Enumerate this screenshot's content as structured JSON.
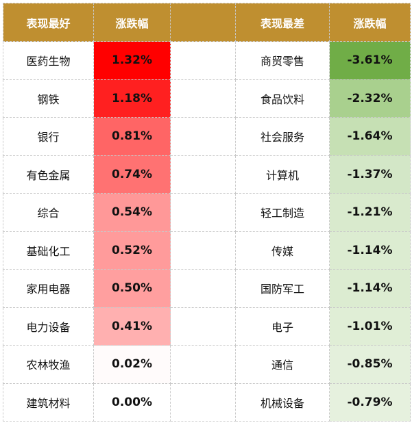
{
  "headers": {
    "best": "表现最好",
    "change1": "涨跌幅",
    "worst": "表现最差",
    "change2": "涨跌幅"
  },
  "rows": [
    {
      "best": "医药生物",
      "best_val": "1.32%",
      "best_color": "#ff0000",
      "worst": "商贸零售",
      "worst_val": "-3.61%",
      "worst_color": "#70ad47"
    },
    {
      "best": "钢铁",
      "best_val": "1.18%",
      "best_color": "#ff2020",
      "worst": "食品饮料",
      "worst_val": "-2.32%",
      "worst_color": "#a9d08e"
    },
    {
      "best": "银行",
      "best_val": "0.81%",
      "best_color": "#ff6565",
      "worst": "社会服务",
      "worst_val": "-1.64%",
      "worst_color": "#c6e0b4"
    },
    {
      "best": "有色金属",
      "best_val": "0.74%",
      "best_color": "#ff7272",
      "worst": "计算机",
      "worst_val": "-1.37%",
      "worst_color": "#d3e7c7"
    },
    {
      "best": "综合",
      "best_val": "0.54%",
      "best_color": "#ff9898",
      "worst": "轻工制造",
      "worst_val": "-1.21%",
      "worst_color": "#d9eacd"
    },
    {
      "best": "基础化工",
      "best_val": "0.52%",
      "best_color": "#ff9b9b",
      "worst": "传媒",
      "worst_val": "-1.14%",
      "worst_color": "#dcecd1"
    },
    {
      "best": "家用电器",
      "best_val": "0.50%",
      "best_color": "#ff9f9f",
      "worst": "国防军工",
      "worst_val": "-1.14%",
      "worst_color": "#dcecd1"
    },
    {
      "best": "电力设备",
      "best_val": "0.41%",
      "best_color": "#ffb0b0",
      "worst": "电子",
      "worst_val": "-1.01%",
      "worst_color": "#e0eed6"
    },
    {
      "best": "农林牧渔",
      "best_val": "0.02%",
      "best_color": "#fffbfb",
      "worst": "通信",
      "worst_val": "-0.85%",
      "worst_color": "#e4f0dc"
    },
    {
      "best": "建筑材料",
      "best_val": "0.00%",
      "best_color": "#ffffff",
      "worst": "机械设备",
      "worst_val": "-0.79%",
      "worst_color": "#e6f1de"
    }
  ]
}
